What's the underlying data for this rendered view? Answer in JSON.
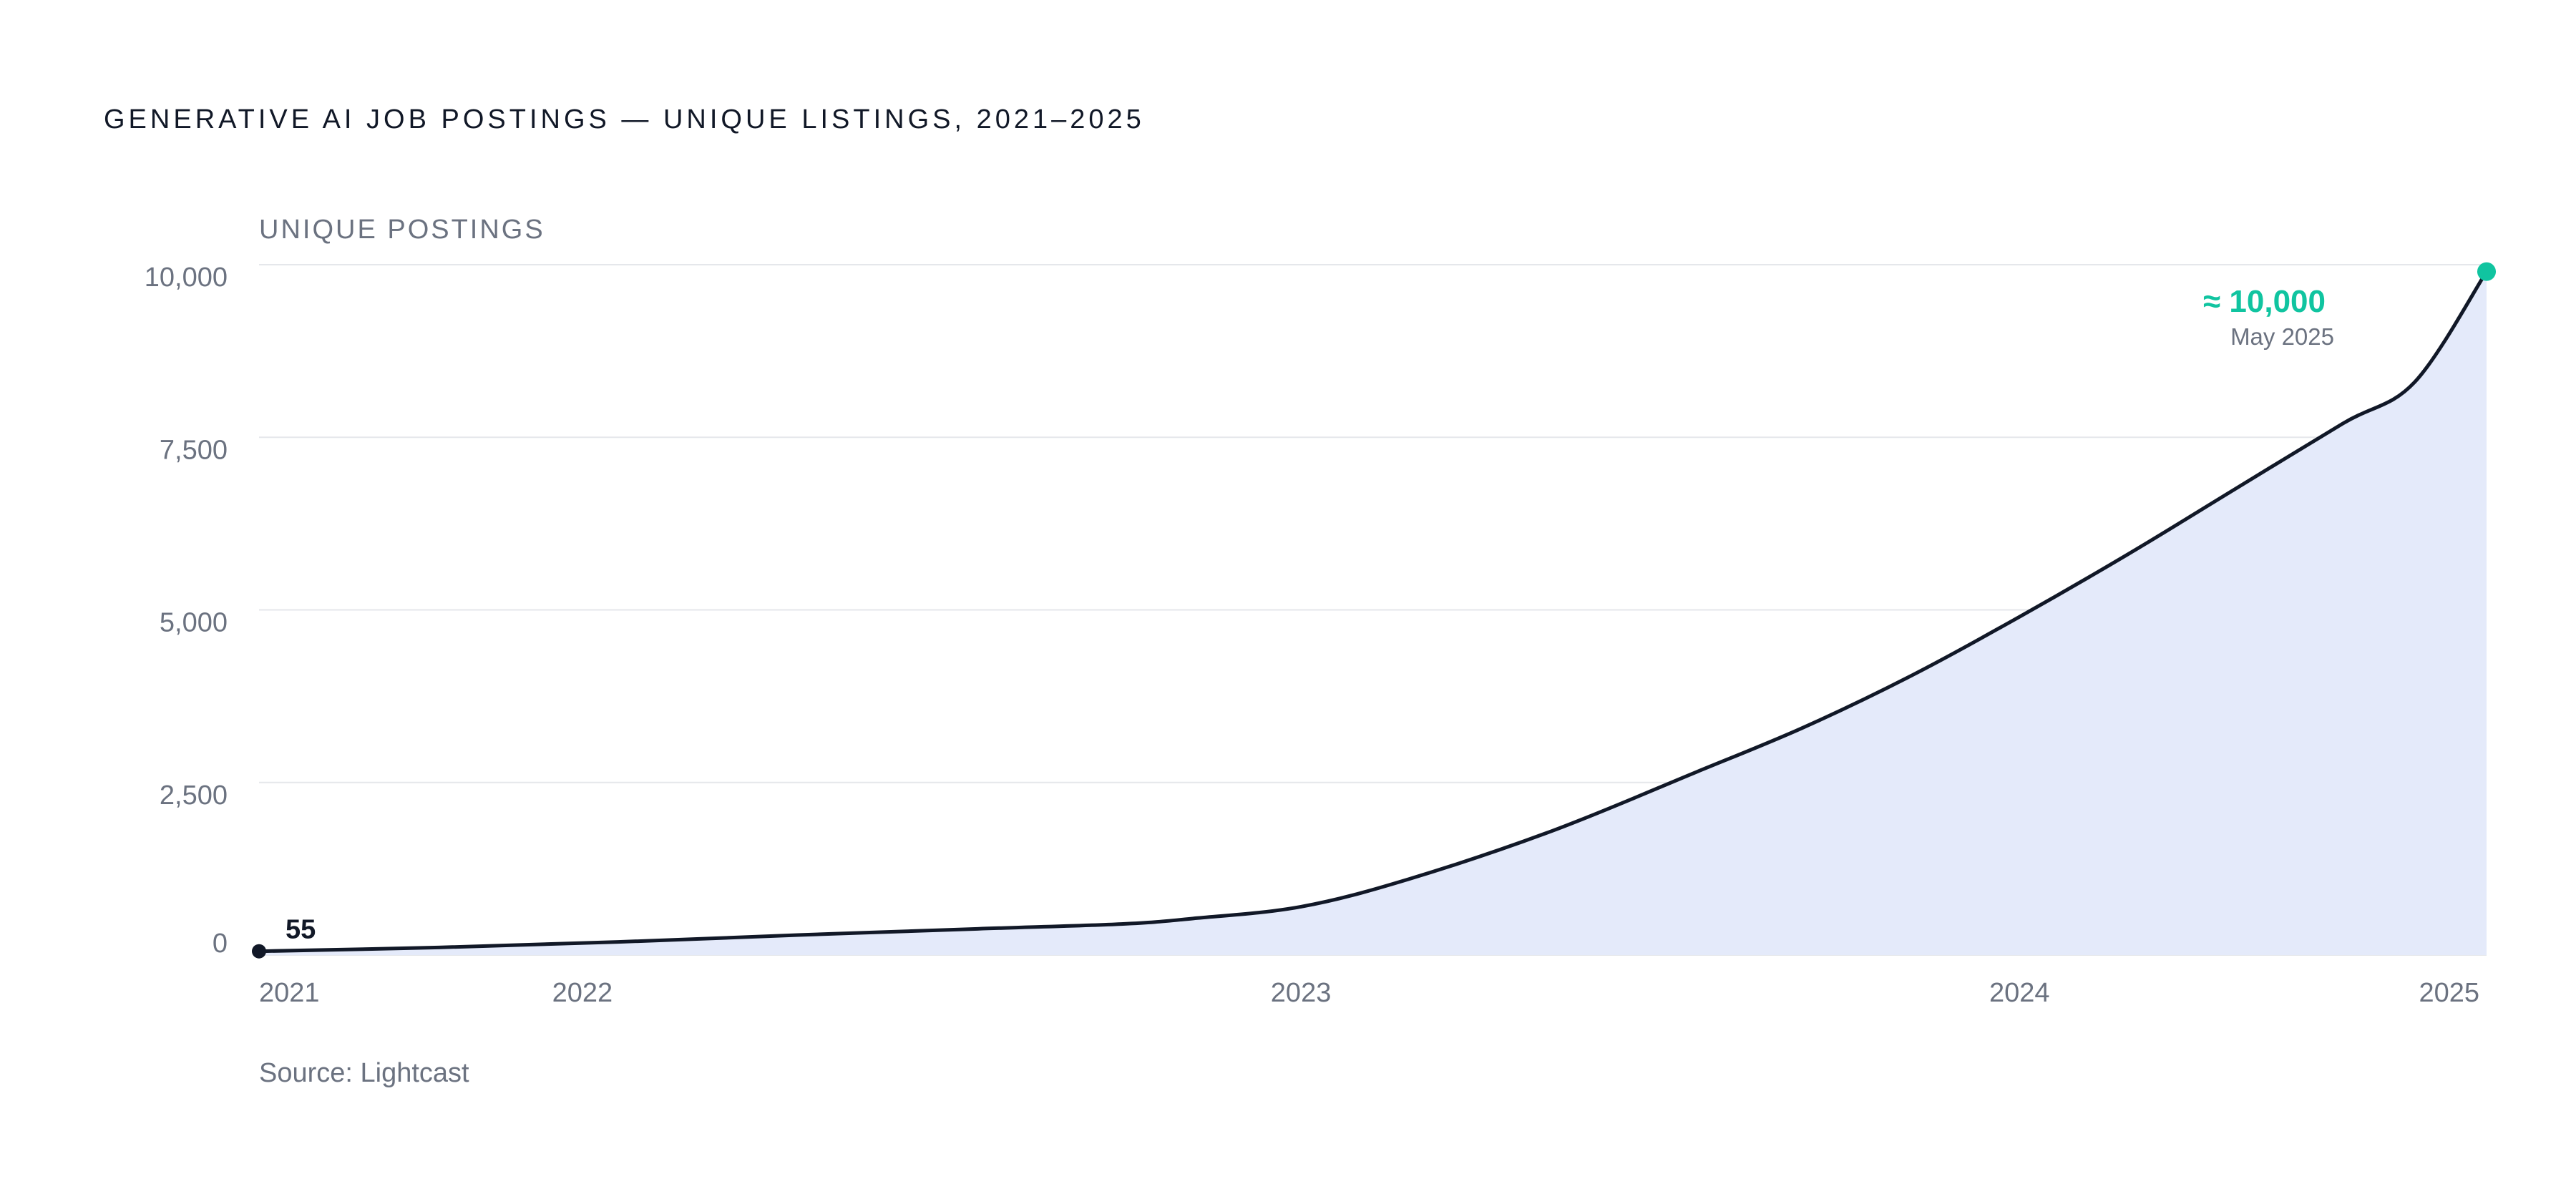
{
  "chart_data": {
    "type": "area",
    "title": "GENERATIVE AI JOB POSTINGS — UNIQUE LISTINGS, 2021–2025",
    "ylabel": "UNIQUE POSTINGS",
    "xlabel": "",
    "x_ticks": [
      "2021",
      "2022",
      "2023",
      "2024",
      "2025"
    ],
    "x_tick_values": [
      2021.0,
      2021.45,
      2022.45,
      2023.45,
      2024.0
    ],
    "xlim": [
      2021.0,
      2024.1
    ],
    "y_ticks": [
      "0",
      "2,500",
      "5,000",
      "7,500",
      "10,000"
    ],
    "y_tick_values": [
      0,
      2500,
      5000,
      7500,
      10000
    ],
    "ylim": [
      0,
      10000
    ],
    "grid": true,
    "series": [
      {
        "x": [
          2021.0,
          2021.25,
          2021.5,
          2021.75,
          2022.0,
          2022.2,
          2022.3,
          2022.45,
          2022.6,
          2022.8,
          2023.0,
          2023.15,
          2023.3,
          2023.45,
          2023.6,
          2023.75,
          2023.9,
          2024.0,
          2024.1
        ],
        "values": [
          55,
          110,
          190,
          290,
          380,
          450,
          530,
          700,
          1100,
          1800,
          2650,
          3300,
          4050,
          4900,
          5800,
          6750,
          7700,
          8300,
          9900
        ]
      }
    ],
    "annotations": [
      {
        "label": "55",
        "x": 2021.0,
        "y": 55
      },
      {
        "label": "≈ 10,000",
        "sublabel": "May 2025",
        "x": 2024.1,
        "y": 9900
      }
    ],
    "source": "Source: Lightcast",
    "colors": {
      "line": "#111827",
      "area": "#e4eafa",
      "grid": "#e5e7eb",
      "start_marker": "#111827",
      "end_marker": "#10c4a0",
      "accent_text": "#10c4a0"
    }
  }
}
